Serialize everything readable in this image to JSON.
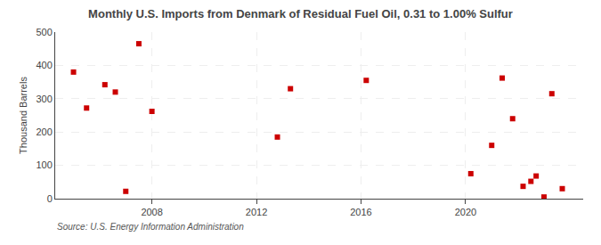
{
  "chart_data": {
    "type": "scatter",
    "title": "Monthly U.S. Imports from Denmark of Residual Fuel Oil, 0.31 to 1.00% Sulfur",
    "y_label": "Thousand Barrels",
    "annotations": [
      "Source: U.S. Energy Information Administration"
    ],
    "x": [
      2005.0,
      2005.5,
      2006.2,
      2006.6,
      2007.0,
      2007.5,
      2008.0,
      2012.8,
      2013.3,
      2016.2,
      2020.2,
      2021.0,
      2021.4,
      2021.8,
      2022.2,
      2022.5,
      2022.7,
      2023.0,
      2023.3,
      2023.7
    ],
    "values": [
      380,
      272,
      342,
      320,
      22,
      465,
      262,
      185,
      330,
      355,
      75,
      160,
      362,
      240,
      37,
      52,
      68,
      5,
      315,
      30
    ],
    "color": "#cc0000",
    "marker": "square",
    "xlim": [
      2004.3,
      2024.5
    ],
    "xticks": [
      2008,
      2012,
      2016,
      2020
    ],
    "ylim": [
      0,
      500
    ],
    "yticks": [
      0,
      100,
      200,
      300,
      400,
      500
    ],
    "grid": true
  }
}
